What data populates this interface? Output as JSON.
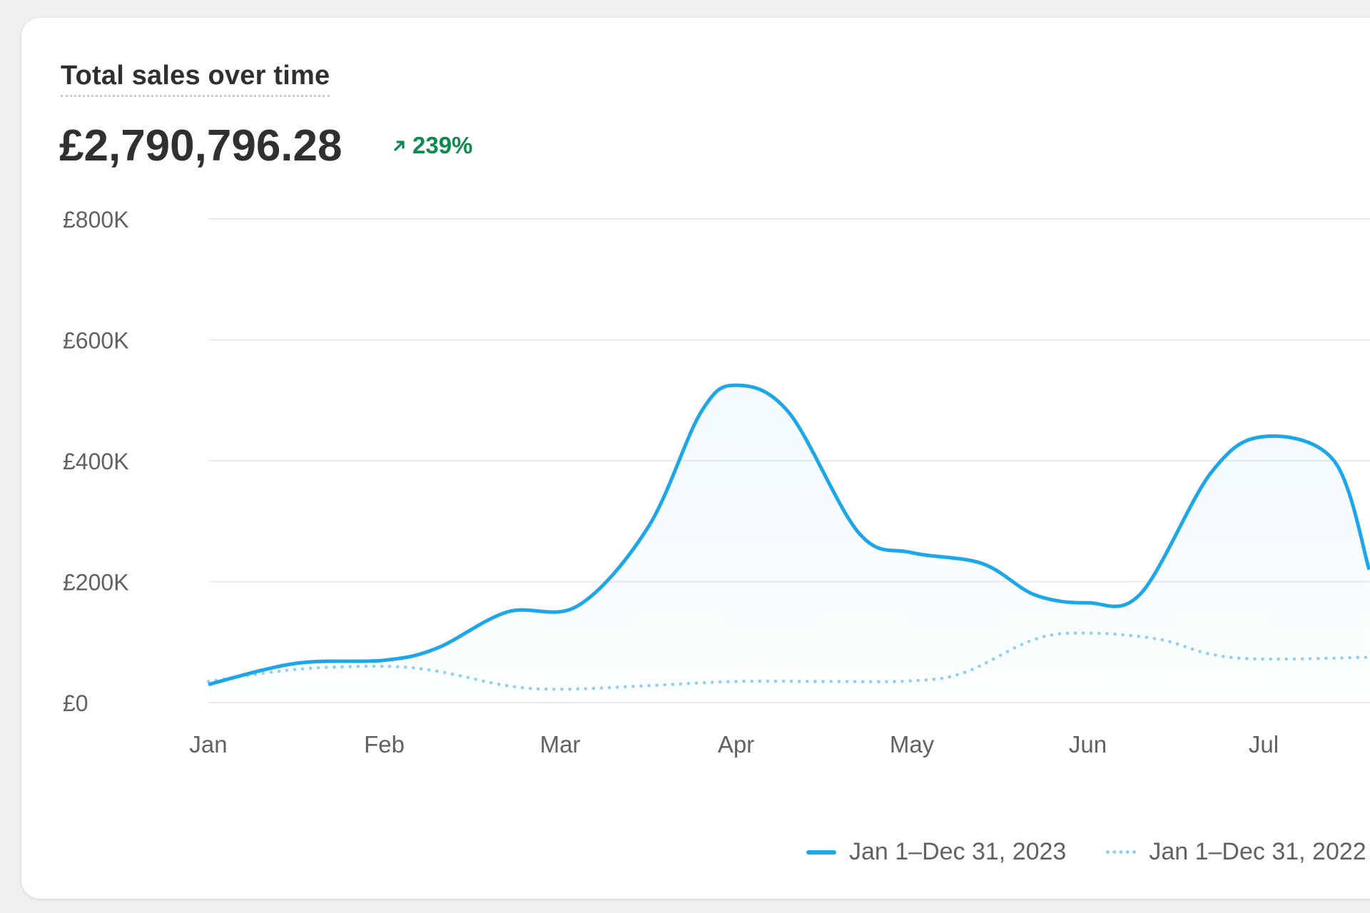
{
  "card": {
    "title": "Total sales over time",
    "total": "£2,790,796.28",
    "change": "239%",
    "change_icon": "arrow-up-right-icon"
  },
  "colors": {
    "current": "#1ea7e8",
    "previous": "#8fd0f1",
    "positive": "#0c8a4d"
  },
  "chart_data": {
    "type": "line",
    "x": [
      "Jan",
      "Feb",
      "Mar",
      "Apr",
      "May",
      "Jun",
      "Jul"
    ],
    "y_ticks": [
      "£0",
      "£200K",
      "£400K",
      "£600K",
      "£800K"
    ],
    "ylim": [
      0,
      800000
    ],
    "grid": true,
    "legend_position": "bottom-right",
    "series": [
      {
        "name": "Jan 1–Dec 31, 2023",
        "style": "solid",
        "points": [
          [
            0,
            30000
          ],
          [
            0.5,
            65000
          ],
          [
            1,
            70000
          ],
          [
            1.3,
            90000
          ],
          [
            1.7,
            150000
          ],
          [
            2.1,
            160000
          ],
          [
            2.5,
            290000
          ],
          [
            2.8,
            480000
          ],
          [
            3,
            525000
          ],
          [
            3.3,
            480000
          ],
          [
            3.7,
            280000
          ],
          [
            4,
            248000
          ],
          [
            4.4,
            230000
          ],
          [
            4.7,
            178000
          ],
          [
            5,
            165000
          ],
          [
            5.3,
            180000
          ],
          [
            5.7,
            380000
          ],
          [
            6,
            440000
          ],
          [
            6.4,
            400000
          ],
          [
            6.6,
            220000
          ]
        ]
      },
      {
        "name": "Jan 1–Dec 31, 2022",
        "style": "dotted",
        "points": [
          [
            0,
            35000
          ],
          [
            0.5,
            55000
          ],
          [
            1,
            60000
          ],
          [
            1.3,
            52000
          ],
          [
            1.7,
            28000
          ],
          [
            2,
            22000
          ],
          [
            2.5,
            28000
          ],
          [
            3,
            35000
          ],
          [
            3.5,
            35000
          ],
          [
            4,
            36000
          ],
          [
            4.3,
            50000
          ],
          [
            4.7,
            105000
          ],
          [
            5,
            115000
          ],
          [
            5.4,
            105000
          ],
          [
            5.7,
            80000
          ],
          [
            6,
            72000
          ],
          [
            6.6,
            75000
          ]
        ]
      }
    ]
  }
}
